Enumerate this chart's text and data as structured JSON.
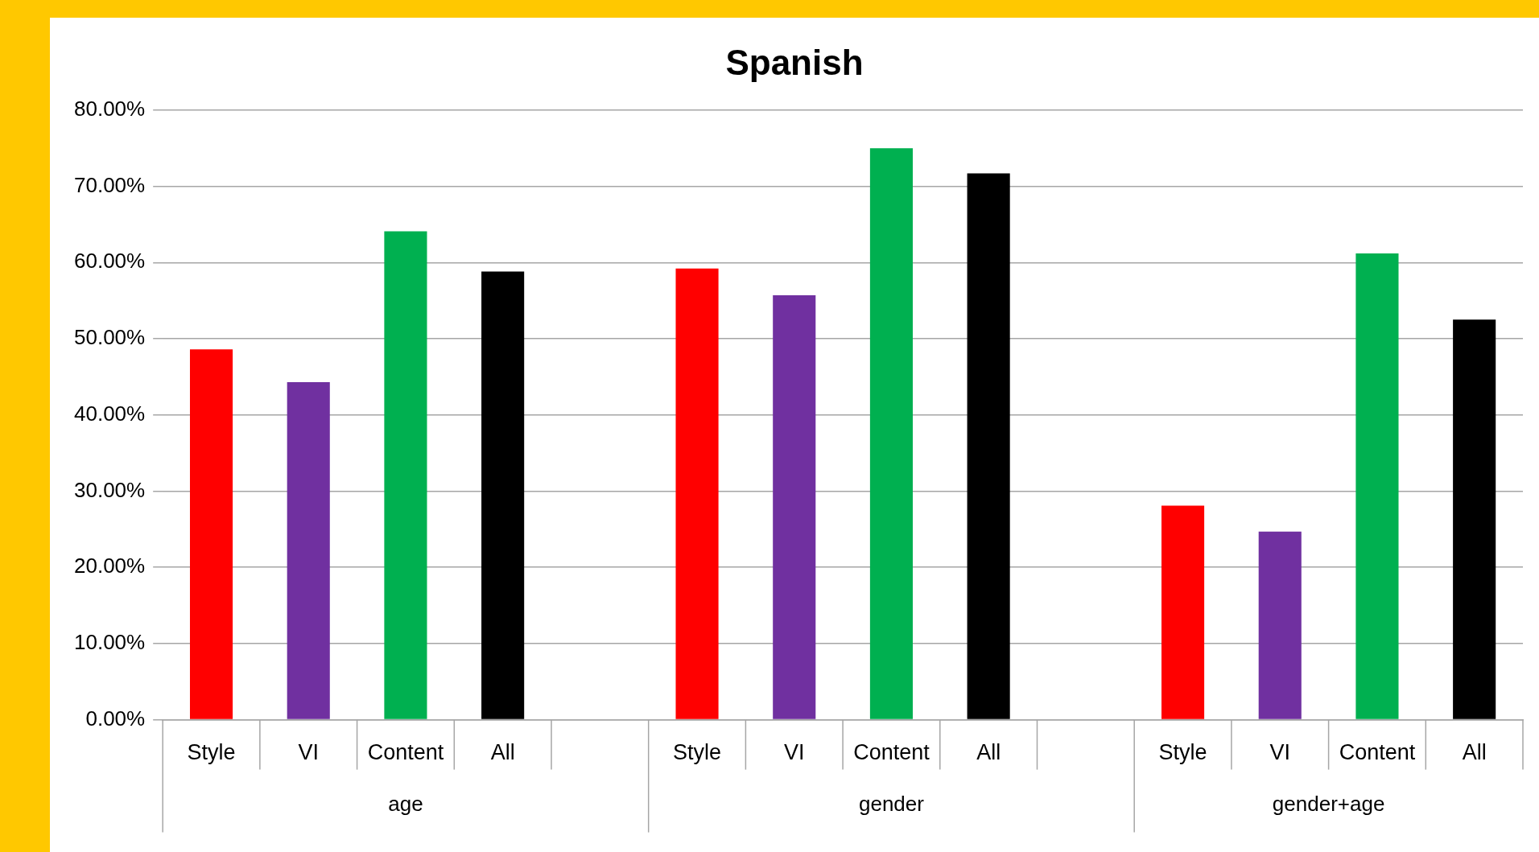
{
  "chart_data": {
    "type": "bar",
    "title": "Spanish",
    "categories": [
      "Style",
      "VI",
      "Content",
      "All",
      null,
      "Style",
      "VI",
      "Content",
      "All",
      null,
      "Style",
      "VI",
      "Content",
      "All"
    ],
    "values": [
      48.6,
      44.3,
      64.1,
      58.8,
      null,
      59.2,
      55.7,
      75.0,
      71.7,
      null,
      28.1,
      24.7,
      61.2,
      52.5
    ],
    "colors": [
      "#ff0000",
      "#7030a0",
      "#00b050",
      "#000000",
      "#ffffff",
      "#ff0000",
      "#7030a0",
      "#00b050",
      "#000000",
      "#ffffff",
      "#ff0000",
      "#7030a0",
      "#00b050",
      "#000000"
    ],
    "annotations": [
      "age",
      "gender",
      "gender+age"
    ],
    "ylim": [
      0,
      80
    ],
    "yticks": [
      {
        "value": 0,
        "label": "0.00%"
      },
      {
        "value": 10,
        "label": "10.00%"
      },
      {
        "value": 20,
        "label": "20.00%"
      },
      {
        "value": 30,
        "label": "30.00%"
      },
      {
        "value": 40,
        "label": "40.00%"
      },
      {
        "value": 50,
        "label": "50.00%"
      },
      {
        "value": 60,
        "label": "60.00%"
      },
      {
        "value": 70,
        "label": "70.00%"
      },
      {
        "value": 80,
        "label": "80.00%"
      }
    ],
    "grid": "y"
  }
}
